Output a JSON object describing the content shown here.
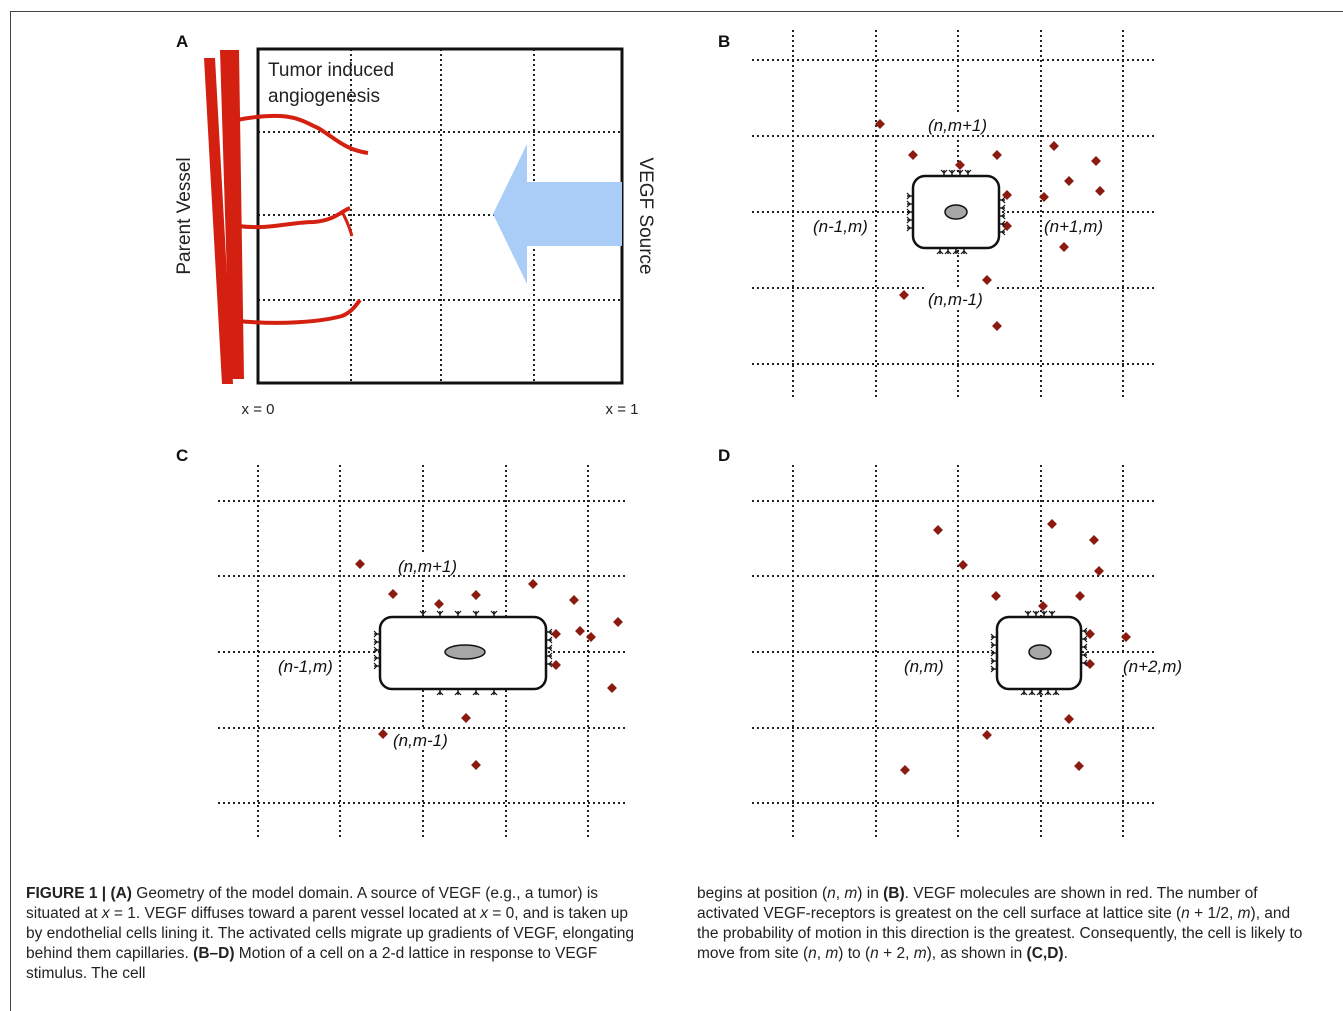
{
  "panels": {
    "A": {
      "label": "A",
      "annotation_line1": "Tumor induced",
      "annotation_line2": "angiogenesis",
      "parent_vessel_label": "Parent Vessel",
      "vegf_source_label": "VEGF Source",
      "x0_label": "x = 0",
      "x1_label": "x = 1",
      "vessel_color": "#d42010",
      "arrow_color": "#a9cdf7"
    },
    "B": {
      "label": "B",
      "site_top": "(n,m+1)",
      "site_left": "(n-1,m)",
      "site_right": "(n+1,m)",
      "site_bottom": "(n,m-1)"
    },
    "C": {
      "label": "C",
      "site_top": "(n,m+1)",
      "site_left": "(n-1,m)",
      "site_bottom": "(n,m-1)"
    },
    "D": {
      "label": "D",
      "site_left": "(n,m)",
      "site_right": "(n+2,m)"
    },
    "molecule_color": "#8b1a10",
    "nucleus_color": "#a6a6a6"
  },
  "caption": {
    "figure_label": "FIGURE 1 | ",
    "col1": [
      {
        "b": "(A)"
      },
      {
        "t": " Geometry of the model domain. A source of VEGF (e.g., a tumor) is situated at "
      },
      {
        "i": "x"
      },
      {
        "t": " = 1. VEGF diffuses toward a parent vessel located at "
      },
      {
        "i": "x"
      },
      {
        "t": " = 0, and is taken up by endothelial cells lining it. The activated cells migrate up gradients of VEGF, elongating behind them capillaries. "
      },
      {
        "b": "(B–D)"
      },
      {
        "t": " Motion of a cell on a 2-d lattice in response to VEGF stimulus. The cell"
      }
    ],
    "col2": [
      {
        "t": "begins at position ("
      },
      {
        "i": "n"
      },
      {
        "t": ", "
      },
      {
        "i": "m"
      },
      {
        "t": ") in "
      },
      {
        "b": "(B)"
      },
      {
        "t": ". VEGF molecules are shown in red. The number of activated VEGF-receptors is greatest on the cell surface at lattice site ("
      },
      {
        "i": "n"
      },
      {
        "t": " + 1/2, "
      },
      {
        "i": "m"
      },
      {
        "t": "), and the probability of motion in this direction is the greatest. Consequently, the cell is likely to move from site ("
      },
      {
        "i": "n"
      },
      {
        "t": ", "
      },
      {
        "i": "m"
      },
      {
        "t": ") to ("
      },
      {
        "i": "n"
      },
      {
        "t": " + 2, "
      },
      {
        "i": "m"
      },
      {
        "t": "), as shown in "
      },
      {
        "b": "(C,D)"
      },
      {
        "t": "."
      }
    ]
  }
}
